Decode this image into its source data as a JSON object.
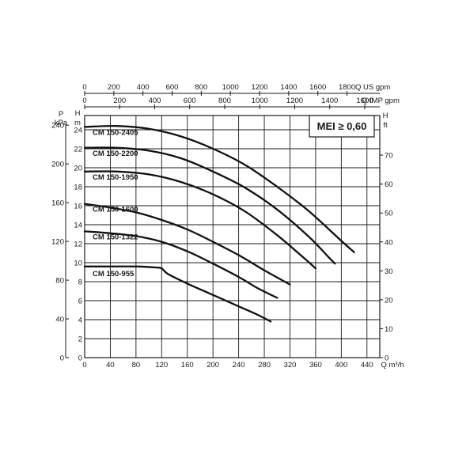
{
  "chart_data": {
    "type": "line",
    "badge": "MEI ≥ 0,60",
    "x_bottom": {
      "label": "Q m³/h",
      "range": [
        0,
        460
      ],
      "ticks": [
        "0",
        "40",
        "80",
        "120",
        "160",
        "200",
        "240",
        "280",
        "320",
        "360",
        "400",
        "440"
      ]
    },
    "x_top_us": {
      "label": "Q US gpm",
      "range": [
        0,
        2025
      ],
      "ticks": [
        "0",
        "200",
        "400",
        "600",
        "800",
        "1000",
        "1200",
        "1400",
        "1600",
        "1800"
      ]
    },
    "x_top_imp": {
      "label": "Q IMP gpm",
      "range": [
        0,
        1686
      ],
      "ticks": [
        "0",
        "200",
        "400",
        "600",
        "800",
        "1000",
        "1200",
        "1400",
        "1600"
      ]
    },
    "y_left_m": {
      "label_top": "H",
      "label_unit": "m",
      "range": [
        0,
        25.5
      ],
      "ticks": [
        "0",
        "2",
        "4",
        "6",
        "8",
        "10",
        "12",
        "14",
        "16",
        "18",
        "20",
        "22",
        "24"
      ]
    },
    "y_left_kpa": {
      "label_top": "P",
      "label_unit": "kPa",
      "range": [
        0,
        250
      ],
      "ticks": [
        "0",
        "40",
        "80",
        "120",
        "160",
        "200",
        "240"
      ]
    },
    "y_right_ft": {
      "label_top": "H",
      "label_unit": "ft",
      "range": [
        0,
        83.7
      ],
      "ticks": [
        "0",
        "10",
        "20",
        "30",
        "40",
        "50",
        "60",
        "70"
      ]
    },
    "series": [
      {
        "name": "CM 150-2405",
        "x": [
          0,
          50,
          100,
          150,
          200,
          250,
          300,
          350,
          400,
          420
        ],
        "y": [
          24.3,
          24.4,
          24.1,
          23.3,
          22.0,
          20.3,
          18.0,
          15.4,
          12.3,
          11.1
        ]
      },
      {
        "name": "CM 150-2200",
        "x": [
          0,
          50,
          100,
          150,
          200,
          250,
          300,
          350,
          380,
          390
        ],
        "y": [
          22.1,
          22.1,
          21.8,
          21.0,
          19.6,
          17.9,
          15.6,
          12.7,
          10.6,
          9.9
        ]
      },
      {
        "name": "CM 150-1950",
        "x": [
          0,
          50,
          100,
          150,
          200,
          250,
          300,
          340,
          360
        ],
        "y": [
          19.6,
          19.6,
          19.3,
          18.5,
          17.2,
          15.4,
          12.9,
          10.6,
          9.4
        ]
      },
      {
        "name": "CM 150-1600",
        "x": [
          0,
          40,
          80,
          120,
          160,
          200,
          240,
          280,
          320
        ],
        "y": [
          16.2,
          15.8,
          15.3,
          14.5,
          13.5,
          12.2,
          10.8,
          9.2,
          7.7
        ]
      },
      {
        "name": "CM 150-1322",
        "x": [
          0,
          40,
          80,
          120,
          160,
          200,
          240,
          270,
          300
        ],
        "y": [
          13.3,
          13.1,
          12.8,
          12.2,
          11.2,
          9.9,
          8.5,
          7.3,
          6.3
        ]
      },
      {
        "name": "CM 150-955",
        "x": [
          0,
          40,
          80,
          110,
          120,
          130,
          160,
          200,
          240,
          270,
          290
        ],
        "y": [
          9.6,
          9.6,
          9.6,
          9.5,
          9.4,
          8.8,
          7.8,
          6.6,
          5.4,
          4.5,
          3.8
        ]
      }
    ],
    "grid": true
  }
}
